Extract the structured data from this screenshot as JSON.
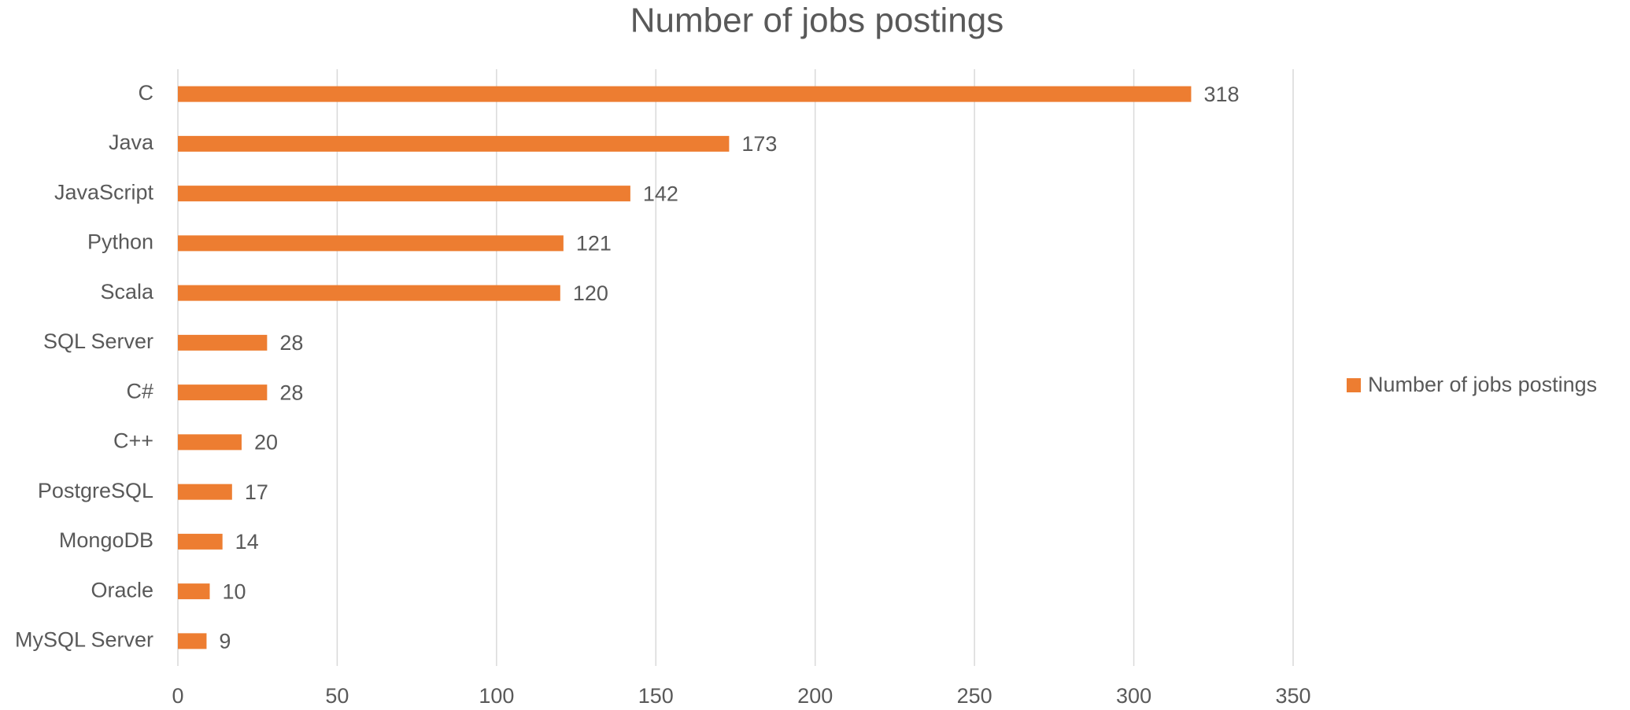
{
  "chart_data": {
    "type": "bar",
    "orientation": "horizontal",
    "title": "Number of jobs postings",
    "categories": [
      "C",
      "Java",
      "JavaScript",
      "Python",
      "Scala",
      "SQL Server",
      "C#",
      "C++",
      "PostgreSQL",
      "MongoDB",
      "Oracle",
      "MySQL Server"
    ],
    "series": [
      {
        "name": "Number of jobs postings",
        "color": "#ed7d31",
        "values": [
          318,
          173,
          142,
          121,
          120,
          28,
          28,
          20,
          17,
          14,
          10,
          9
        ]
      }
    ],
    "xlim": [
      0,
      350
    ],
    "xticks": [
      0,
      50,
      100,
      150,
      200,
      250,
      300,
      350
    ],
    "grid": true,
    "data_labels": true,
    "legend": "right"
  }
}
